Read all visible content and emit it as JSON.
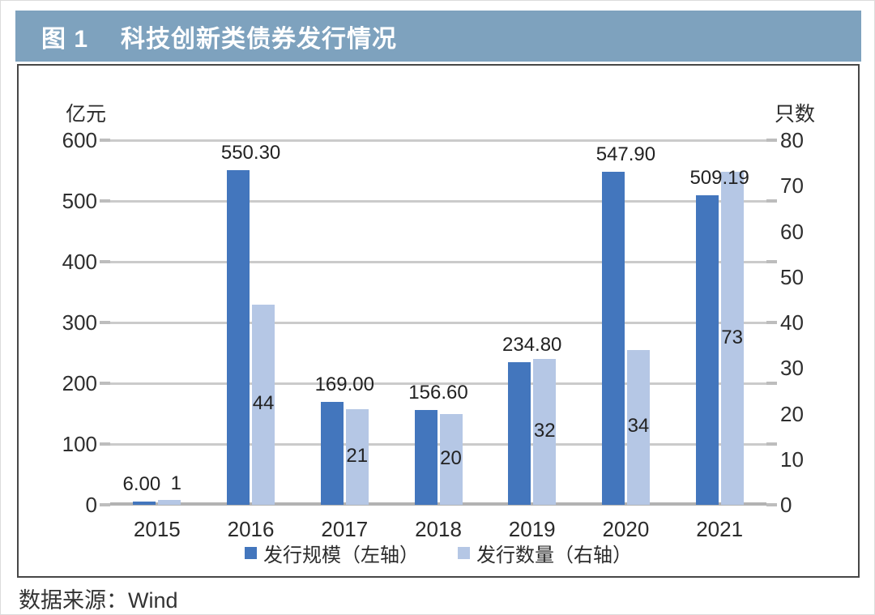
{
  "header": {
    "figure_label": "图 1",
    "title": "科技创新类债券发行情况"
  },
  "chart_data": {
    "type": "bar",
    "title": "科技创新类债券发行情况",
    "categories": [
      "2015",
      "2016",
      "2017",
      "2018",
      "2019",
      "2020",
      "2021"
    ],
    "series": [
      {
        "name": "发行规模（左轴）",
        "axis": "left",
        "values": [
          6.0,
          550.3,
          169.0,
          156.6,
          234.8,
          547.9,
          509.19
        ],
        "labels": [
          "6.00",
          "550.30",
          "169.00",
          "156.60",
          "234.80",
          "547.90",
          "509.19"
        ],
        "color": "#4376BD"
      },
      {
        "name": "发行数量（右轴）",
        "axis": "right",
        "values": [
          1,
          44,
          21,
          20,
          32,
          34,
          73
        ],
        "labels": [
          "1",
          "44",
          "21",
          "20",
          "32",
          "34",
          "73"
        ],
        "color": "#B5C7E5"
      }
    ],
    "left_axis": {
      "label": "亿元",
      "min": 0,
      "max": 600,
      "ticks": [
        600,
        500,
        400,
        300,
        200,
        100,
        0
      ]
    },
    "right_axis": {
      "label": "只数",
      "min": 0,
      "max": 80,
      "ticks": [
        80,
        70,
        60,
        50,
        40,
        30,
        20,
        10,
        0
      ]
    },
    "grid": true,
    "legend_position": "bottom"
  },
  "source": "数据来源：Wind",
  "colors": {
    "header_bg": "#7EA2BE",
    "header_text": "#FFFFFF",
    "bar_scale": "#4376BD",
    "bar_count": "#B5C7E5",
    "gridline": "#CBCBCB"
  }
}
